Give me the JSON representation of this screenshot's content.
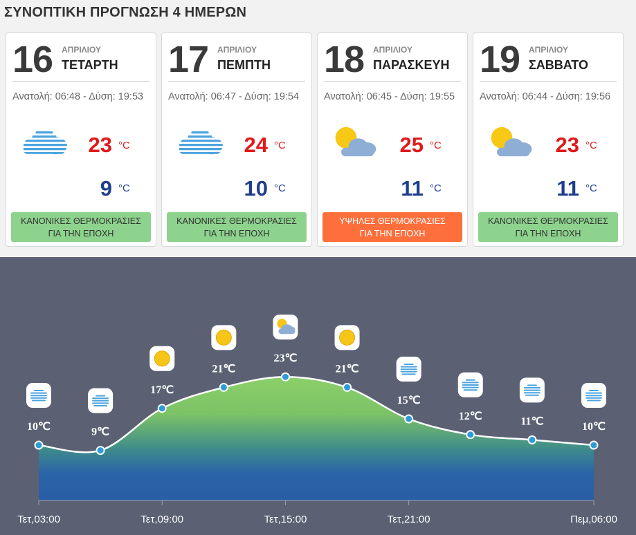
{
  "header": {
    "title": "ΣΥΝΟΠΤΙΚΗ ΠΡΟΓΝΩΣΗ 4 ΗΜΕΡΩΝ"
  },
  "days": [
    {
      "day": "16",
      "month": "ΑΠΡΙΛΙΟΥ",
      "weekday": "ΤΕΤΑΡΤΗ",
      "sun": "Ανατολή: 06:48 - Δύση: 19:53",
      "icon": "cloudy-icon",
      "max": "23",
      "min": "9",
      "unit": "°C",
      "note": "ΚΑΝΟΝΙΚΕΣ ΘΕΡΜΟΚΡΑΣΙΕΣ ΓΙΑ ΤΗΝ ΕΠΟΧΗ",
      "note_level": "normal"
    },
    {
      "day": "17",
      "month": "ΑΠΡΙΛΙΟΥ",
      "weekday": "ΠΕΜΠΤΗ",
      "sun": "Ανατολή: 06:47 - Δύση: 19:54",
      "icon": "cloudy-icon",
      "max": "24",
      "min": "10",
      "unit": "°C",
      "note": "ΚΑΝΟΝΙΚΕΣ ΘΕΡΜΟΚΡΑΣΙΕΣ ΓΙΑ ΤΗΝ ΕΠΟΧΗ",
      "note_level": "normal"
    },
    {
      "day": "18",
      "month": "ΑΠΡΙΛΙΟΥ",
      "weekday": "ΠΑΡΑΣΚΕΥΗ",
      "sun": "Ανατολή: 06:45 - Δύση: 19:55",
      "icon": "partly-cloudy-icon",
      "max": "25",
      "min": "11",
      "unit": "°C",
      "note": "ΥΨΗΛΕΣ ΘΕΡΜΟΚΡΑΣΙΕΣ ΓΙΑ ΤΗΝ ΕΠΟΧΗ",
      "note_level": "high"
    },
    {
      "day": "19",
      "month": "ΑΠΡΙΛΙΟΥ",
      "weekday": "ΣΑΒΒΑΤΟ",
      "sun": "Ανατολή: 06:44 - Δύση: 19:56",
      "icon": "partly-cloudy-icon",
      "max": "23",
      "min": "11",
      "unit": "°C",
      "note": "ΚΑΝΟΝΙΚΕΣ ΘΕΡΜΟΚΡΑΣΙΕΣ ΓΙΑ ΤΗΝ ΕΠΟΧΗ",
      "note_level": "normal"
    }
  ],
  "colors": {
    "max": "#e01a1a",
    "min": "#1f3f8c",
    "normal": "#8dd28d",
    "high": "#ff6f3c",
    "chart_bg": "#5b6173",
    "line": "#ffffff",
    "point": "#2e9bd6"
  },
  "chart_data": {
    "type": "area",
    "x": [
      "03:00",
      "06:00",
      "09:00",
      "12:00",
      "15:00",
      "18:00",
      "21:00",
      "00:00",
      "03:00",
      "06:00"
    ],
    "tick_labels": [
      "Τετ,03:00",
      "Τετ,09:00",
      "Τετ,15:00",
      "Τετ,21:00",
      "Πεμ,06:00"
    ],
    "tick_indices": [
      0,
      2,
      4,
      6,
      9
    ],
    "values": [
      10,
      9,
      17,
      21,
      23,
      21,
      15,
      12,
      11,
      10
    ],
    "labels": [
      "10℃",
      "9℃",
      "17℃",
      "21℃",
      "23℃",
      "21℃",
      "15℃",
      "12℃",
      "11℃",
      "10℃"
    ],
    "icons": [
      "cloudy-icon",
      "cloudy-icon",
      "sunny-icon",
      "sunny-icon",
      "partly-cloudy-icon",
      "sunny-icon",
      "cloudy-icon",
      "cloudy-icon",
      "cloudy-icon",
      "cloudy-icon"
    ],
    "grid": false
  }
}
